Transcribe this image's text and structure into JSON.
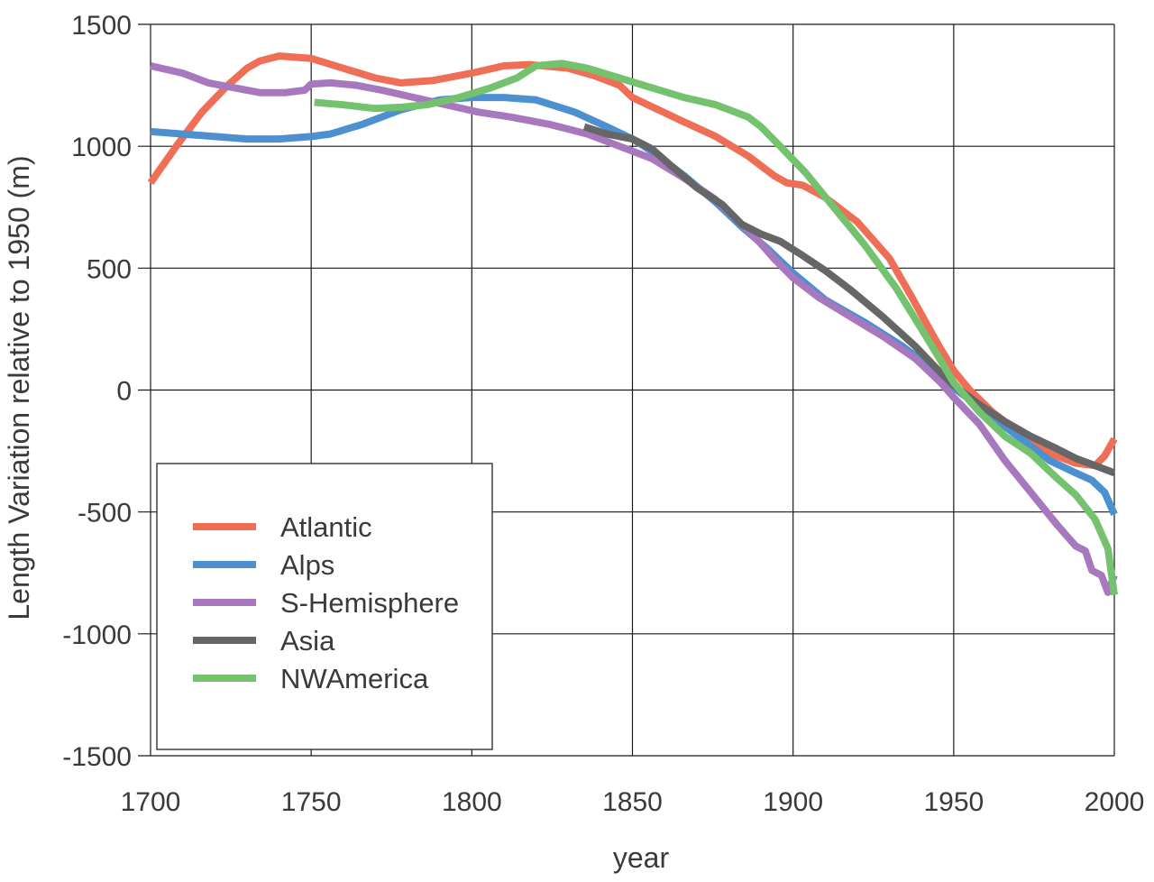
{
  "chart_data": {
    "type": "line",
    "title": "",
    "xlabel": "year",
    "ylabel": "Length Variation relative to 1950 (m)",
    "xlim": [
      1700,
      2000
    ],
    "ylim": [
      -1500,
      1500
    ],
    "xticks": [
      "1700",
      "1750",
      "1800",
      "1850",
      "1900",
      "1950",
      "2000"
    ],
    "yticks": [
      "1500",
      "1000",
      "500",
      "0",
      "-500",
      "-1000",
      "-1500"
    ],
    "grid": true,
    "legend_position": "bottom-left",
    "series": [
      {
        "name": "Atlantic",
        "color": "#ef6f56",
        "points": [
          [
            1700,
            850
          ],
          [
            1708,
            1000
          ],
          [
            1716,
            1140
          ],
          [
            1724,
            1250
          ],
          [
            1730,
            1320
          ],
          [
            1734,
            1350
          ],
          [
            1740,
            1370
          ],
          [
            1750,
            1360
          ],
          [
            1760,
            1320
          ],
          [
            1770,
            1280
          ],
          [
            1778,
            1260
          ],
          [
            1788,
            1270
          ],
          [
            1800,
            1300
          ],
          [
            1810,
            1330
          ],
          [
            1818,
            1335
          ],
          [
            1830,
            1320
          ],
          [
            1838,
            1290
          ],
          [
            1846,
            1250
          ],
          [
            1850,
            1200
          ],
          [
            1858,
            1150
          ],
          [
            1866,
            1100
          ],
          [
            1876,
            1040
          ],
          [
            1886,
            960
          ],
          [
            1894,
            880
          ],
          [
            1898,
            850
          ],
          [
            1903,
            840
          ],
          [
            1910,
            790
          ],
          [
            1920,
            690
          ],
          [
            1930,
            540
          ],
          [
            1937,
            380
          ],
          [
            1945,
            190
          ],
          [
            1950,
            80
          ],
          [
            1955,
            0
          ],
          [
            1962,
            -90
          ],
          [
            1970,
            -170
          ],
          [
            1980,
            -260
          ],
          [
            1988,
            -300
          ],
          [
            1994,
            -310
          ],
          [
            1997,
            -270
          ],
          [
            2000,
            -200
          ]
        ]
      },
      {
        "name": "Alps",
        "color": "#4d90cf",
        "points": [
          [
            1700,
            1060
          ],
          [
            1710,
            1050
          ],
          [
            1720,
            1040
          ],
          [
            1730,
            1030
          ],
          [
            1740,
            1030
          ],
          [
            1750,
            1040
          ],
          [
            1756,
            1050
          ],
          [
            1766,
            1090
          ],
          [
            1778,
            1150
          ],
          [
            1790,
            1190
          ],
          [
            1800,
            1200
          ],
          [
            1810,
            1200
          ],
          [
            1820,
            1190
          ],
          [
            1832,
            1140
          ],
          [
            1842,
            1080
          ],
          [
            1850,
            1030
          ],
          [
            1856,
            980
          ],
          [
            1866,
            880
          ],
          [
            1876,
            770
          ],
          [
            1884,
            670
          ],
          [
            1892,
            580
          ],
          [
            1900,
            480
          ],
          [
            1910,
            370
          ],
          [
            1922,
            280
          ],
          [
            1934,
            180
          ],
          [
            1944,
            80
          ],
          [
            1950,
            10
          ],
          [
            1960,
            -90
          ],
          [
            1970,
            -190
          ],
          [
            1980,
            -290
          ],
          [
            1988,
            -340
          ],
          [
            1993,
            -370
          ],
          [
            1997,
            -420
          ],
          [
            2000,
            -510
          ]
        ]
      },
      {
        "name": "S-Hemisphere",
        "color": "#a878be",
        "points": [
          [
            1700,
            1330
          ],
          [
            1710,
            1300
          ],
          [
            1718,
            1260
          ],
          [
            1726,
            1240
          ],
          [
            1734,
            1220
          ],
          [
            1742,
            1220
          ],
          [
            1748,
            1230
          ],
          [
            1750,
            1255
          ],
          [
            1756,
            1260
          ],
          [
            1764,
            1250
          ],
          [
            1772,
            1230
          ],
          [
            1782,
            1200
          ],
          [
            1792,
            1170
          ],
          [
            1802,
            1140
          ],
          [
            1812,
            1120
          ],
          [
            1824,
            1090
          ],
          [
            1836,
            1050
          ],
          [
            1846,
            1000
          ],
          [
            1856,
            950
          ],
          [
            1866,
            870
          ],
          [
            1876,
            780
          ],
          [
            1884,
            680
          ],
          [
            1890,
            600
          ],
          [
            1894,
            540
          ],
          [
            1900,
            460
          ],
          [
            1908,
            380
          ],
          [
            1918,
            300
          ],
          [
            1928,
            220
          ],
          [
            1938,
            130
          ],
          [
            1946,
            30
          ],
          [
            1950,
            -30
          ],
          [
            1958,
            -140
          ],
          [
            1966,
            -290
          ],
          [
            1974,
            -420
          ],
          [
            1982,
            -550
          ],
          [
            1988,
            -640
          ],
          [
            1991,
            -660
          ],
          [
            1993,
            -740
          ],
          [
            1996,
            -760
          ],
          [
            1998,
            -830
          ],
          [
            2000,
            -760
          ]
        ]
      },
      {
        "name": "Asia",
        "color": "#666666",
        "points": [
          [
            1835,
            1080
          ],
          [
            1842,
            1050
          ],
          [
            1850,
            1030
          ],
          [
            1856,
            990
          ],
          [
            1862,
            920
          ],
          [
            1870,
            830
          ],
          [
            1878,
            760
          ],
          [
            1884,
            680
          ],
          [
            1890,
            640
          ],
          [
            1896,
            610
          ],
          [
            1902,
            560
          ],
          [
            1910,
            490
          ],
          [
            1918,
            410
          ],
          [
            1928,
            300
          ],
          [
            1938,
            180
          ],
          [
            1946,
            70
          ],
          [
            1950,
            20
          ],
          [
            1958,
            -60
          ],
          [
            1966,
            -130
          ],
          [
            1974,
            -190
          ],
          [
            1982,
            -240
          ],
          [
            1988,
            -280
          ],
          [
            1994,
            -310
          ],
          [
            2000,
            -340
          ]
        ]
      },
      {
        "name": "NWAmerica",
        "color": "#74c26e",
        "points": [
          [
            1751,
            1180
          ],
          [
            1760,
            1170
          ],
          [
            1770,
            1155
          ],
          [
            1778,
            1160
          ],
          [
            1786,
            1170
          ],
          [
            1796,
            1200
          ],
          [
            1806,
            1240
          ],
          [
            1814,
            1280
          ],
          [
            1820,
            1330
          ],
          [
            1828,
            1340
          ],
          [
            1836,
            1320
          ],
          [
            1846,
            1280
          ],
          [
            1856,
            1240
          ],
          [
            1866,
            1200
          ],
          [
            1876,
            1170
          ],
          [
            1886,
            1120
          ],
          [
            1890,
            1080
          ],
          [
            1896,
            1000
          ],
          [
            1904,
            890
          ],
          [
            1912,
            760
          ],
          [
            1922,
            600
          ],
          [
            1932,
            420
          ],
          [
            1940,
            250
          ],
          [
            1946,
            120
          ],
          [
            1950,
            30
          ],
          [
            1958,
            -90
          ],
          [
            1966,
            -190
          ],
          [
            1974,
            -260
          ],
          [
            1982,
            -360
          ],
          [
            1988,
            -430
          ],
          [
            1994,
            -530
          ],
          [
            1998,
            -650
          ],
          [
            2000,
            -840
          ]
        ]
      }
    ]
  }
}
